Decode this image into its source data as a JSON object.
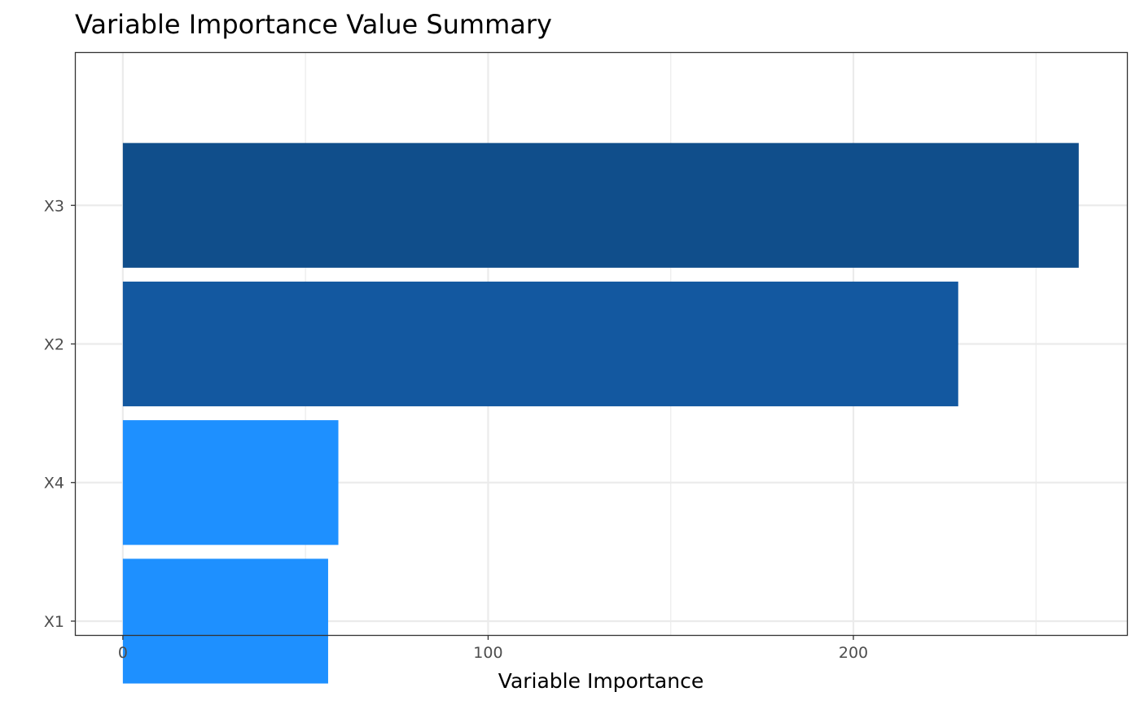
{
  "chart_data": {
    "type": "bar",
    "orientation": "horizontal",
    "title": "Variable Importance Value Summary",
    "xlabel": "Variable Importance",
    "ylabel": "",
    "categories": [
      "X3",
      "X2",
      "X4",
      "X1"
    ],
    "values": [
      261.7,
      228.7,
      59.0,
      56.2
    ],
    "x_ticks": [
      "0",
      "100",
      "200"
    ],
    "x_tick_values": [
      0,
      100,
      200
    ],
    "xlim": [
      -12.9,
      274.9
    ],
    "grid": true,
    "legend": "none",
    "colors": [
      "#104E8B",
      "#1358A0",
      "#1E90FF",
      "#1E90FF"
    ]
  }
}
